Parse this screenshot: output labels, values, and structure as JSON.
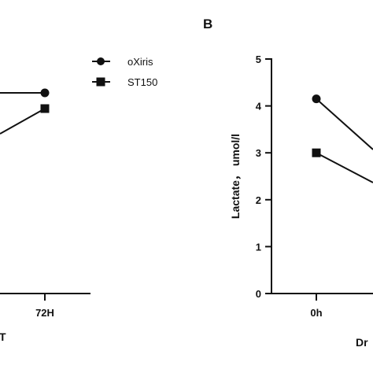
{
  "panel_b_letter": "B",
  "legend": {
    "items": [
      {
        "label": "oXiris",
        "marker": "circle"
      },
      {
        "label": "ST150",
        "marker": "square"
      }
    ]
  },
  "chart_data": [
    {
      "type": "line",
      "panel": "A (partially visible)",
      "categories": [
        "72H"
      ],
      "xlabel_fragment": "T",
      "series": [
        {
          "name": "oXiris",
          "marker": "circle"
        },
        {
          "name": "ST150",
          "marker": "square"
        }
      ]
    },
    {
      "type": "line",
      "panel": "B",
      "ylabel": "Lactate， umol/l",
      "xlabel_fragment": "Dr",
      "ylim": [
        0,
        5
      ],
      "yticks": [
        "0",
        "1",
        "2",
        "3",
        "4",
        "5"
      ],
      "categories": [
        "0h"
      ],
      "series": [
        {
          "name": "oXiris",
          "marker": "circle",
          "values": [
            4.15
          ]
        },
        {
          "name": "ST150",
          "marker": "square",
          "values": [
            3.0
          ]
        }
      ]
    }
  ],
  "colors": {
    "ink": "#111111",
    "background": "#ffffff"
  }
}
